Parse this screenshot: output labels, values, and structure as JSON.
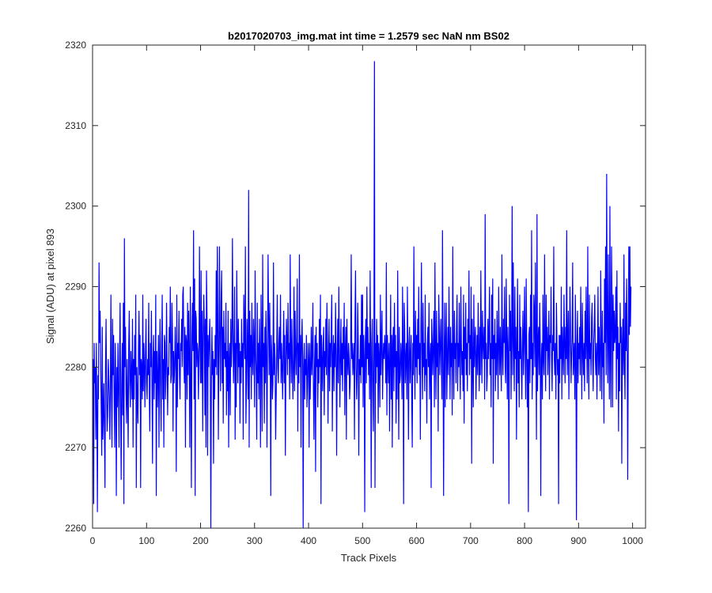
{
  "chart_data": {
    "type": "line",
    "title": "b2017020703_img.mat int time = 1.2579 sec  NaN nm BS02",
    "xlabel": "Track Pixels",
    "ylabel": "Signal (ADU) at pixel 893",
    "xlim": [
      0,
      1024
    ],
    "ylim": [
      2260,
      2320
    ],
    "xticks": [
      0,
      100,
      200,
      300,
      400,
      500,
      600,
      700,
      800,
      900,
      1000
    ],
    "yticks": [
      2260,
      2270,
      2280,
      2290,
      2300,
      2310,
      2320
    ],
    "grid": false,
    "line_color": "#0000ff",
    "series": [
      {
        "x_start": 1,
        "x_step": 1,
        "values": [
          2281,
          2263,
          2283,
          2278,
          2280,
          2271,
          2283,
          2274,
          2262,
          2279,
          2276,
          2293,
          2283,
          2287,
          2281,
          2275,
          2269,
          2285,
          2271,
          2274,
          2278,
          2272,
          2265,
          2280,
          2286,
          2277,
          2272,
          2274,
          2281,
          2279,
          2276,
          2271,
          2278,
          2289,
          2277,
          2270,
          2286,
          2279,
          2284,
          2276,
          2270,
          2283,
          2278,
          2264,
          2280,
          2275,
          2283,
          2277,
          2270,
          2281,
          2288,
          2275,
          2266,
          2278,
          2283,
          2274,
          2288,
          2263,
          2296,
          2280,
          2285,
          2277,
          2273,
          2281,
          2276,
          2270,
          2283,
          2287,
          2278,
          2275,
          2282,
          2279,
          2276,
          2286,
          2270,
          2281,
          2276,
          2284,
          2279,
          2289,
          2265,
          2280,
          2276,
          2273,
          2282,
          2287,
          2279,
          2284,
          2265,
          2281,
          2280,
          2276,
          2289,
          2277,
          2283,
          2280,
          2275,
          2282,
          2286,
          2278,
          2276,
          2281,
          2279,
          2288,
          2277,
          2272,
          2283,
          2280,
          2287,
          2278,
          2268,
          2281,
          2284,
          2276,
          2282,
          2278,
          2289,
          2264,
          2282,
          2275,
          2279,
          2284,
          2270,
          2281,
          2286,
          2277,
          2272,
          2283,
          2289,
          2276,
          2281,
          2270,
          2284,
          2283,
          2276,
          2279,
          2288,
          2281,
          2274,
          2280,
          2279,
          2285,
          2283,
          2290,
          2278,
          2279,
          2288,
          2284,
          2272,
          2282,
          2278,
          2280,
          2285,
          2281,
          2267,
          2289,
          2275,
          2283,
          2281,
          2287,
          2279,
          2276,
          2283,
          2282,
          2286,
          2280,
          2289,
          2290,
          2281,
          2278,
          2285,
          2270,
          2284,
          2283,
          2276,
          2288,
          2279,
          2287,
          2281,
          2270,
          2290,
          2279,
          2265,
          2284,
          2288,
          2282,
          2297,
          2276,
          2291,
          2264,
          2287,
          2286,
          2280,
          2283,
          2282,
          2276,
          2281,
          2295,
          2283,
          2278,
          2292,
          2278,
          2287,
          2272,
          2283,
          2289,
          2285,
          2274,
          2286,
          2270,
          2292,
          2286,
          2269,
          2284,
          2280,
          2283,
          2286,
          2281,
          2260,
          2277,
          2285,
          2279,
          2282,
          2268,
          2281,
          2276,
          2284,
          2280,
          2292,
          2279,
          2295,
          2286,
          2271,
          2282,
          2295,
          2283,
          2277,
          2288,
          2292,
          2278,
          2285,
          2273,
          2287,
          2281,
          2283,
          2280,
          2288,
          2274,
          2282,
          2277,
          2287,
          2270,
          2281,
          2283,
          2274,
          2286,
          2280,
          2283,
          2296,
          2285,
          2278,
          2282,
          2290,
          2271,
          2283,
          2275,
          2292,
          2284,
          2278,
          2286,
          2280,
          2283,
          2273,
          2282,
          2278,
          2286,
          2280,
          2283,
          2271,
          2289,
          2285,
          2281,
          2295,
          2273,
          2278,
          2286,
          2282,
          2276,
          2302,
          2270,
          2287,
          2280,
          2284,
          2276,
          2288,
          2281,
          2279,
          2286,
          2283,
          2275,
          2292,
          2282,
          2279,
          2271,
          2288,
          2278,
          2283,
          2276,
          2286,
          2281,
          2270,
          2289,
          2283,
          2272,
          2294,
          2280,
          2283,
          2273,
          2285,
          2278,
          2287,
          2282,
          2270,
          2283,
          2294,
          2286,
          2279,
          2288,
          2282,
          2264,
          2284,
          2281,
          2276,
          2278,
          2293,
          2279,
          2283,
          2281,
          2271,
          2276,
          2282,
          2289,
          2280,
          2278,
          2283,
          2285,
          2281,
          2289,
          2278,
          2283,
          2280,
          2276,
          2282,
          2287,
          2278,
          2284,
          2269,
          2280,
          2286,
          2283,
          2279,
          2288,
          2281,
          2283,
          2276,
          2294,
          2282,
          2278,
          2286,
          2281,
          2276,
          2280,
          2290,
          2277,
          2287,
          2282,
          2279,
          2284,
          2291,
          2272,
          2283,
          2278,
          2294,
          2280,
          2284,
          2270,
          2283,
          2286,
          2281,
          2260,
          2280,
          2283,
          2276,
          2281,
          2279,
          2284,
          2275,
          2278,
          2283,
          2281,
          2270,
          2283,
          2276,
          2280,
          2285,
          2279,
          2282,
          2288,
          2277,
          2271,
          2280,
          2284,
          2267,
          2285,
          2280,
          2283,
          2275,
          2281,
          2278,
          2286,
          2280,
          2289,
          2263,
          2284,
          2281,
          2277,
          2283,
          2285,
          2274,
          2282,
          2280,
          2286,
          2279,
          2288,
          2283,
          2273,
          2281,
          2286,
          2277,
          2283,
          2280,
          2285,
          2289,
          2272,
          2281,
          2284,
          2277,
          2283,
          2280,
          2288,
          2282,
          2269,
          2281,
          2286,
          2278,
          2290,
          2283,
          2275,
          2281,
          2286,
          2279,
          2283,
          2277,
          2285,
          2281,
          2288,
          2274,
          2282,
          2285,
          2271,
          2286,
          2281,
          2279,
          2283,
          2281,
          2276,
          2278,
          2283,
          2294,
          2281,
          2283,
          2279,
          2281,
          2283,
          2271,
          2286,
          2292,
          2280,
          2276,
          2279,
          2288,
          2283,
          2269,
          2281,
          2279,
          2284,
          2278,
          2289,
          2280,
          2289,
          2275,
          2284,
          2281,
          2262,
          2283,
          2286,
          2278,
          2290,
          2281,
          2285,
          2279,
          2283,
          2276,
          2292,
          2281,
          2265,
          2283,
          2286,
          2277,
          2272,
          2283,
          2318,
          2265,
          2283,
          2278,
          2286,
          2280,
          2284,
          2273,
          2283,
          2281,
          2275,
          2289,
          2279,
          2283,
          2287,
          2276,
          2281,
          2283,
          2281,
          2284,
          2282,
          2278,
          2293,
          2274,
          2284,
          2281,
          2278,
          2283,
          2272,
          2281,
          2289,
          2276,
          2284,
          2270,
          2283,
          2285,
          2277,
          2288,
          2280,
          2284,
          2273,
          2282,
          2276,
          2292,
          2281,
          2271,
          2285,
          2278,
          2279,
          2283,
          2281,
          2276,
          2290,
          2282,
          2263,
          2288,
          2285,
          2278,
          2281,
          2283,
          2276,
          2290,
          2281,
          2271,
          2283,
          2285,
          2278,
          2281,
          2284,
          2276,
          2270,
          2283,
          2279,
          2295,
          2282,
          2276,
          2287,
          2280,
          2284,
          2278,
          2286,
          2281,
          2290,
          2279,
          2283,
          2271,
          2285,
          2293,
          2282,
          2276,
          2288,
          2280,
          2283,
          2277,
          2289,
          2279,
          2281,
          2273,
          2283,
          2285,
          2280,
          2288,
          2276,
          2281,
          2283,
          2265,
          2286,
          2283,
          2279,
          2283,
          2287,
          2275,
          2293,
          2282,
          2276,
          2287,
          2280,
          2283,
          2272,
          2289,
          2285,
          2279,
          2283,
          2286,
          2280,
          2276,
          2297,
          2283,
          2264,
          2280,
          2288,
          2275,
          2283,
          2288,
          2276,
          2281,
          2285,
          2279,
          2290,
          2283,
          2276,
          2285,
          2280,
          2283,
          2274,
          2295,
          2282,
          2276,
          2287,
          2281,
          2283,
          2278,
          2285,
          2289,
          2277,
          2283,
          2280,
          2288,
          2281,
          2276,
          2290,
          2283,
          2279,
          2282,
          2277,
          2289,
          2273,
          2285,
          2281,
          2288,
          2279,
          2283,
          2277,
          2286,
          2283,
          2292,
          2279,
          2284,
          2281,
          2290,
          2268,
          2286,
          2281,
          2275,
          2289,
          2280,
          2283,
          2285,
          2276,
          2281,
          2284,
          2279,
          2288,
          2282,
          2277,
          2285,
          2279,
          2292,
          2283,
          2278,
          2287,
          2283,
          2281,
          2285,
          2276,
          2299,
          2281,
          2283,
          2277,
          2279,
          2286,
          2281,
          2284,
          2290,
          2279,
          2283,
          2275,
          2289,
          2281,
          2291,
          2268,
          2284,
          2281,
          2286,
          2277,
          2283,
          2279,
          2287,
          2282,
          2276,
          2290,
          2283,
          2279,
          2285,
          2281,
          2277,
          2294,
          2282,
          2279,
          2286,
          2283,
          2290,
          2280,
          2278,
          2291,
          2283,
          2276,
          2285,
          2281,
          2263,
          2289,
          2282,
          2287,
          2276,
          2284,
          2300,
          2279,
          2293,
          2283,
          2277,
          2290,
          2281,
          2285,
          2271,
          2283,
          2291,
          2278,
          2282,
          2275,
          2289,
          2281,
          2285,
          2280,
          2276,
          2283,
          2287,
          2279,
          2283,
          2290,
          2282,
          2276,
          2291,
          2283,
          2275,
          2281,
          2262,
          2284,
          2285,
          2278,
          2289,
          2281,
          2297,
          2276,
          2283,
          2279,
          2289,
          2287,
          2280,
          2293,
          2282,
          2271,
          2299,
          2277,
          2283,
          2285,
          2279,
          2288,
          2283,
          2264,
          2281,
          2283,
          2276,
          2289,
          2281,
          2279,
          2294,
          2283,
          2277,
          2289,
          2282,
          2285,
          2279,
          2283,
          2287,
          2276,
          2284,
          2283,
          2290,
          2281,
          2277,
          2284,
          2282,
          2295,
          2281,
          2279,
          2283,
          2276,
          2288,
          2283,
          2279,
          2281,
          2263,
          2284,
          2278,
          2284,
          2281,
          2290,
          2276,
          2285,
          2282,
          2279,
          2289,
          2283,
          2278,
          2285,
          2281,
          2297,
          2279,
          2283,
          2287,
          2276,
          2282,
          2290,
          2285,
          2278,
          2281,
          2284,
          2293,
          2279,
          2281,
          2283,
          2276,
          2289,
          2283,
          2261,
          2282,
          2287,
          2278,
          2283,
          2281,
          2285,
          2279,
          2290,
          2283,
          2276,
          2288,
          2282,
          2279,
          2283,
          2277,
          2287,
          2281,
          2290,
          2283,
          2278,
          2295,
          2282,
          2276,
          2289,
          2281,
          2283,
          2279,
          2286,
          2288,
          2281,
          2277,
          2283,
          2285,
          2289,
          2281,
          2279,
          2283,
          2276,
          2282,
          2290,
          2279,
          2285,
          2281,
          2277,
          2292,
          2283,
          2276,
          2287,
          2280,
          2283,
          2273,
          2291,
          2283,
          2295,
          2279,
          2304,
          2285,
          2278,
          2294,
          2283,
          2276,
          2300,
          2281,
          2275,
          2295,
          2288,
          2275,
          2289,
          2282,
          2287,
          2283,
          2284,
          2290,
          2276,
          2292,
          2281,
          2285,
          2272,
          2283,
          2277,
          2288,
          2283,
          2285,
          2268,
          2283,
          2286,
          2279,
          2294,
          2281,
          2276,
          2288,
          2282,
          2291,
          2283,
          2266,
          2282,
          2295,
          2284,
          2295,
          2285,
          2290
        ]
      }
    ]
  }
}
